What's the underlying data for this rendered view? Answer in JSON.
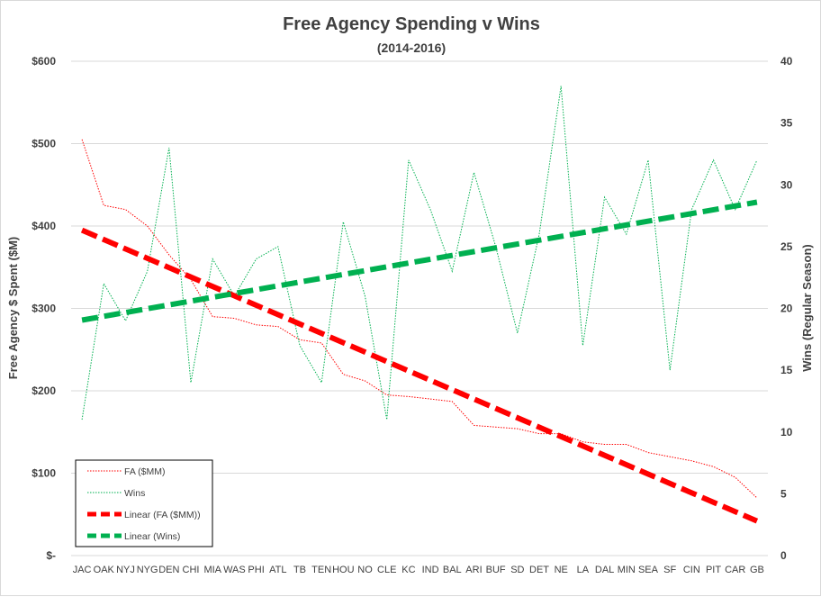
{
  "chart_data": {
    "type": "line",
    "title": "Free Agency Spending v Wins",
    "subtitle": "(2014-2016)",
    "ylabel": "Free Agency $ Spent  ($M)",
    "y2label": "Wins (Regular Season)",
    "ylim": [
      0,
      600
    ],
    "y2lim": [
      0,
      40
    ],
    "y_ticks": [
      0,
      100,
      200,
      300,
      400,
      500,
      600
    ],
    "y_tick_labels": [
      "$-",
      "$100",
      "$200",
      "$300",
      "$400",
      "$500",
      "$600"
    ],
    "y2_ticks": [
      0,
      5,
      10,
      15,
      20,
      25,
      30,
      35,
      40
    ],
    "y2_tick_labels": [
      "0",
      "5",
      "10",
      "15",
      "20",
      "25",
      "30",
      "35",
      "40"
    ],
    "grid": true,
    "legend_position": "bottom-left",
    "categories": [
      "JAC",
      "OAK",
      "NYJ",
      "NYG",
      "DEN",
      "CHI",
      "MIA",
      "WAS",
      "PHI",
      "ATL",
      "TB",
      "TEN",
      "HOU",
      "NO",
      "CLE",
      "KC",
      "IND",
      "BAL",
      "ARI",
      "BUF",
      "SD",
      "DET",
      "NE",
      "LA",
      "DAL",
      "MIN",
      "SEA",
      "SF",
      "CIN",
      "PIT",
      "CAR",
      "GB"
    ],
    "series": [
      {
        "name": "FA ($MM)",
        "axis": "left",
        "color": "#ff0000",
        "style": "dotted",
        "values": [
          505,
          425,
          420,
          400,
          365,
          335,
          290,
          288,
          280,
          278,
          262,
          258,
          220,
          212,
          195,
          193,
          190,
          187,
          158,
          156,
          154,
          148,
          148,
          138,
          135,
          135,
          125,
          120,
          115,
          108,
          95,
          70
        ]
      },
      {
        "name": "Wins",
        "axis": "right",
        "color": "#00b050",
        "style": "dotted",
        "values": [
          11,
          22,
          19,
          23,
          33,
          14,
          24,
          21,
          24,
          25,
          17,
          14,
          27,
          21,
          11,
          32,
          28,
          23,
          31,
          25,
          18,
          26,
          38,
          17,
          29,
          26,
          32,
          15,
          28,
          32,
          28,
          32
        ]
      },
      {
        "name": "Linear (FA ($MM))",
        "axis": "left",
        "color": "#ff0000",
        "style": "dashed-thick",
        "trend": [
          395,
          42
        ]
      },
      {
        "name": "Linear (Wins)",
        "axis": "right",
        "color": "#00b050",
        "style": "dashed-thick",
        "trend": [
          19.05,
          28.6
        ]
      }
    ]
  }
}
